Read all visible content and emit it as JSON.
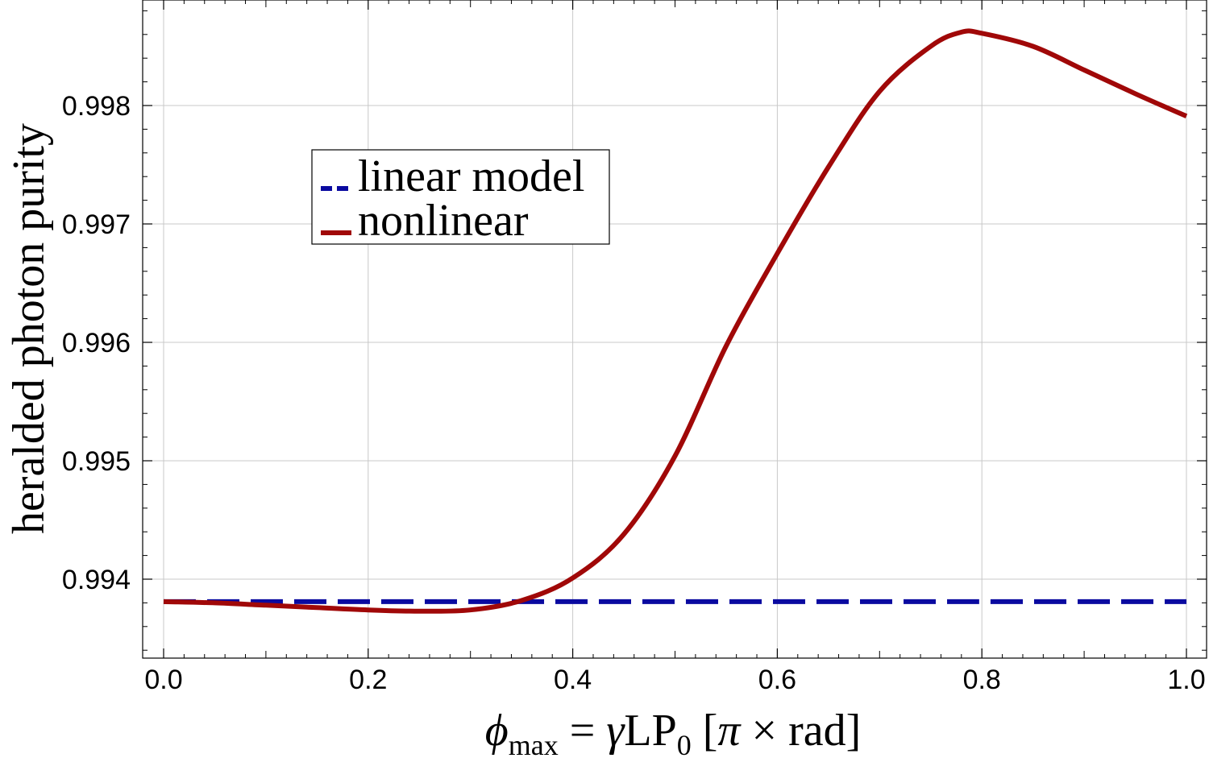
{
  "chart_data": {
    "type": "line",
    "title": "",
    "xlabel": {
      "symbol": "ϕ",
      "subscript": "max",
      "equals": " = ",
      "gamma": "γ",
      "lp": "LP",
      "lp_sub": "0",
      "units": " [",
      "pi": "π",
      "units_rest": " × rad]"
    },
    "ylabel": "heralded photon purity",
    "xlim": [
      0.0,
      1.0
    ],
    "ylim": [
      0.99333,
      0.99888
    ],
    "grid": true,
    "legend_position": "upper-left-center",
    "x_ticks": [
      "0.0",
      "0.2",
      "0.4",
      "0.6",
      "0.8",
      "1.0"
    ],
    "x_tick_values": [
      0.0,
      0.2,
      0.4,
      0.6,
      0.8,
      1.0
    ],
    "y_ticks": [
      "0.994",
      "0.995",
      "0.996",
      "0.997",
      "0.998"
    ],
    "y_tick_values": [
      0.994,
      0.995,
      0.996,
      0.997,
      0.998
    ],
    "x": [
      0.0,
      0.05,
      0.1,
      0.15,
      0.2,
      0.25,
      0.3,
      0.35,
      0.4,
      0.45,
      0.5,
      0.55,
      0.6,
      0.65,
      0.7,
      0.75,
      0.78,
      0.8,
      0.85,
      0.9,
      0.95,
      1.0
    ],
    "series": [
      {
        "name": "linear model",
        "color": "#0a0aa0",
        "style": "dashed",
        "values": [
          0.99381,
          0.99381,
          0.99381,
          0.99381,
          0.99381,
          0.99381,
          0.99381,
          0.99381,
          0.99381,
          0.99381,
          0.99381,
          0.99381,
          0.99381,
          0.99381,
          0.99381,
          0.99381,
          0.99381,
          0.99381,
          0.99381,
          0.99381,
          0.99381,
          0.99381
        ]
      },
      {
        "name": "nonlinear",
        "color": "#a00808",
        "style": "solid",
        "values": [
          0.99381,
          0.9938,
          0.99378,
          0.99376,
          0.99374,
          0.99373,
          0.99374,
          0.99382,
          0.99401,
          0.99438,
          0.99504,
          0.99597,
          0.99675,
          0.99748,
          0.99812,
          0.9985,
          0.99862,
          0.99861,
          0.9985,
          0.9983,
          0.9981,
          0.99791
        ]
      }
    ]
  }
}
